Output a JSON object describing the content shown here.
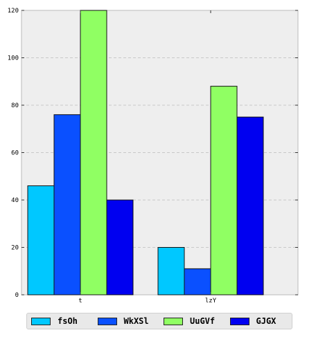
{
  "chart_data": {
    "type": "bar",
    "categories": [
      "t",
      "lzY"
    ],
    "series": [
      {
        "name": "fsOh",
        "values": [
          46,
          20
        ],
        "color": "#00c8ff"
      },
      {
        "name": "WkXSl",
        "values": [
          76,
          11
        ],
        "color": "#0a50ff"
      },
      {
        "name": "UuGVf",
        "values": [
          120,
          88
        ],
        "color": "#90ff63"
      },
      {
        "name": "GJGX",
        "values": [
          40,
          75
        ],
        "color": "#0000f0"
      }
    ],
    "ylim": [
      0,
      120
    ],
    "yticks": [
      0,
      20,
      40,
      60,
      80,
      100,
      120
    ],
    "grid": true,
    "legend": "bottom",
    "plot_background": "#eeeeee",
    "title": "",
    "xlabel": "",
    "ylabel": ""
  }
}
